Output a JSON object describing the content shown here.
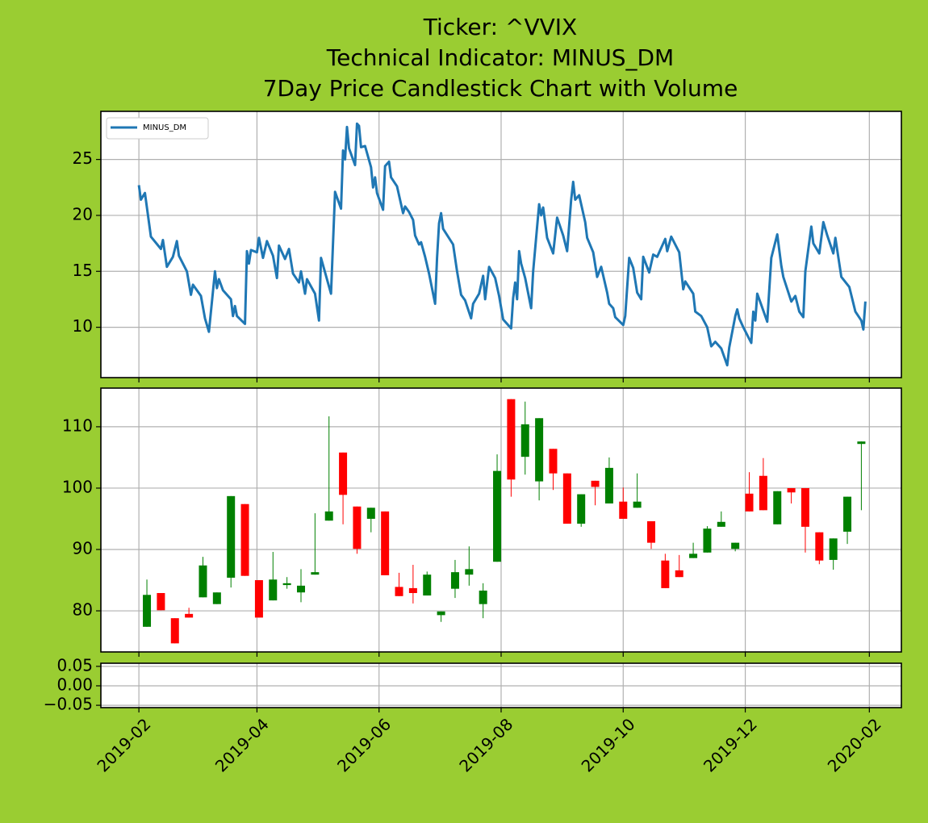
{
  "title": [
    "Ticker: ^VVIX",
    "Technical Indicator: MINUS_DM",
    "7Day Price Candlestick Chart with Volume"
  ],
  "xlim": [
    "2019-01-13",
    "2020-02-17"
  ],
  "xticks": [
    {
      "value": "2019-02-01",
      "label": "2019-02"
    },
    {
      "value": "2019-04-01",
      "label": "2019-04"
    },
    {
      "value": "2019-06-01",
      "label": "2019-06"
    },
    {
      "value": "2019-08-01",
      "label": "2019-08"
    },
    {
      "value": "2019-10-01",
      "label": "2019-10"
    },
    {
      "value": "2019-12-01",
      "label": "2019-12"
    },
    {
      "value": "2020-02-01",
      "label": "2020-02"
    }
  ],
  "chart_data": [
    {
      "type": "line",
      "legend": "upper left",
      "grid": true,
      "ylim": [
        5.5,
        29.3
      ],
      "yticks": [
        10,
        15,
        20,
        25
      ],
      "series": [
        {
          "name": "MINUS_DM",
          "color": "#1f77b4",
          "x": [
            "2019-02-01",
            "2019-02-02",
            "2019-02-04",
            "2019-02-07",
            "2019-02-12",
            "2019-02-13",
            "2019-02-15",
            "2019-02-18",
            "2019-02-20",
            "2019-02-21",
            "2019-02-25",
            "2019-02-27",
            "2019-02-28",
            "2019-03-04",
            "2019-03-06",
            "2019-03-08",
            "2019-03-11",
            "2019-03-12",
            "2019-03-13",
            "2019-03-15",
            "2019-03-19",
            "2019-03-20",
            "2019-03-21",
            "2019-03-22",
            "2019-03-26",
            "2019-03-27",
            "2019-03-28",
            "2019-03-29",
            "2019-04-01",
            "2019-04-02",
            "2019-04-04",
            "2019-04-06",
            "2019-04-09",
            "2019-04-11",
            "2019-04-12",
            "2019-04-15",
            "2019-04-17",
            "2019-04-19",
            "2019-04-22",
            "2019-04-23",
            "2019-04-25",
            "2019-04-26",
            "2019-04-30",
            "2019-05-02",
            "2019-05-03",
            "2019-05-08",
            "2019-05-10",
            "2019-05-13",
            "2019-05-14",
            "2019-05-15",
            "2019-05-16",
            "2019-05-17",
            "2019-05-20",
            "2019-05-21",
            "2019-05-22",
            "2019-05-23",
            "2019-05-25",
            "2019-05-28",
            "2019-05-29",
            "2019-05-30",
            "2019-05-31",
            "2019-06-03",
            "2019-06-04",
            "2019-06-06",
            "2019-06-07",
            "2019-06-10",
            "2019-06-13",
            "2019-06-14",
            "2019-06-16",
            "2019-06-18",
            "2019-06-19",
            "2019-06-21",
            "2019-06-22",
            "2019-06-24",
            "2019-06-26",
            "2019-06-29",
            "2019-06-30",
            "2019-07-01",
            "2019-07-02",
            "2019-07-03",
            "2019-07-08",
            "2019-07-10",
            "2019-07-12",
            "2019-07-14",
            "2019-07-17",
            "2019-07-18",
            "2019-07-21",
            "2019-07-23",
            "2019-07-24",
            "2019-07-26",
            "2019-07-29",
            "2019-07-31",
            "2019-08-02",
            "2019-08-06",
            "2019-08-07",
            "2019-08-08",
            "2019-08-09",
            "2019-08-10",
            "2019-08-11",
            "2019-08-13",
            "2019-08-16",
            "2019-08-17",
            "2019-08-20",
            "2019-08-21",
            "2019-08-22",
            "2019-08-24",
            "2019-08-27",
            "2019-08-29",
            "2019-09-01",
            "2019-09-03",
            "2019-09-05",
            "2019-09-06",
            "2019-09-07",
            "2019-09-09",
            "2019-09-12",
            "2019-09-13",
            "2019-09-16",
            "2019-09-18",
            "2019-09-20",
            "2019-09-23",
            "2019-09-24",
            "2019-09-26",
            "2019-09-27",
            "2019-10-01",
            "2019-10-02",
            "2019-10-04",
            "2019-10-06",
            "2019-10-08",
            "2019-10-10",
            "2019-10-11",
            "2019-10-14",
            "2019-10-16",
            "2019-10-18",
            "2019-10-22",
            "2019-10-23",
            "2019-10-25",
            "2019-10-29",
            "2019-10-31",
            "2019-11-01",
            "2019-11-05",
            "2019-11-06",
            "2019-11-09",
            "2019-11-12",
            "2019-11-14",
            "2019-11-16",
            "2019-11-19",
            "2019-11-22",
            "2019-11-23",
            "2019-11-26",
            "2019-11-27",
            "2019-11-28",
            "2019-11-30",
            "2019-12-04",
            "2019-12-05",
            "2019-12-06",
            "2019-12-07",
            "2019-12-09",
            "2019-12-12",
            "2019-12-14",
            "2019-12-17",
            "2019-12-19",
            "2019-12-20",
            "2019-12-24",
            "2019-12-26",
            "2019-12-28",
            "2019-12-30",
            "2019-12-31",
            "2020-01-03",
            "2020-01-04",
            "2020-01-07",
            "2020-01-09",
            "2020-01-11",
            "2020-01-14",
            "2020-01-15",
            "2020-01-18",
            "2020-01-22",
            "2020-01-25",
            "2020-01-28",
            "2020-01-29",
            "2020-01-30"
          ],
          "values": [
            22.7,
            21.4,
            22.0,
            18.1,
            17.0,
            17.8,
            15.4,
            16.3,
            17.7,
            16.4,
            15.0,
            12.9,
            13.8,
            12.8,
            10.8,
            9.6,
            15.0,
            13.5,
            14.3,
            13.3,
            12.5,
            11.0,
            11.9,
            11.0,
            10.3,
            16.8,
            15.7,
            16.9,
            16.7,
            18.0,
            16.2,
            17.7,
            16.4,
            14.4,
            17.3,
            16.1,
            17.0,
            14.8,
            14.0,
            15.0,
            13.0,
            14.3,
            13.0,
            10.6,
            16.2,
            13.0,
            22.1,
            20.6,
            25.8,
            25.0,
            27.9,
            26.0,
            24.5,
            28.2,
            28.0,
            26.1,
            26.2,
            24.3,
            22.5,
            23.4,
            22.0,
            20.5,
            24.4,
            24.8,
            23.4,
            22.6,
            20.2,
            20.8,
            20.3,
            19.6,
            18.2,
            17.4,
            17.6,
            16.3,
            14.8,
            12.1,
            16.2,
            19.3,
            20.2,
            18.8,
            17.4,
            15.0,
            12.9,
            12.4,
            10.8,
            12.1,
            13.0,
            14.6,
            12.5,
            15.4,
            14.4,
            12.8,
            10.7,
            9.9,
            12.6,
            14.0,
            12.5,
            16.8,
            15.7,
            14.4,
            11.7,
            15.0,
            21.0,
            20.0,
            20.7,
            18.0,
            16.6,
            19.8,
            18.2,
            16.8,
            21.4,
            23.0,
            21.4,
            21.8,
            19.4,
            18.0,
            16.7,
            14.5,
            15.4,
            13.1,
            12.1,
            11.7,
            10.9,
            10.2,
            11.0,
            16.2,
            15.3,
            13.1,
            12.5,
            16.3,
            14.9,
            16.5,
            16.3,
            17.9,
            16.8,
            18.1,
            16.7,
            13.4,
            14.1,
            13.0,
            11.4,
            11.0,
            10.0,
            8.3,
            8.7,
            8.1,
            6.6,
            8.2,
            11.0,
            11.6,
            10.8,
            10.0,
            8.6,
            11.4,
            10.6,
            13.0,
            12.0,
            10.5,
            16.2,
            18.3,
            15.5,
            14.5,
            12.3,
            12.8,
            11.4,
            10.9,
            15.0,
            19.0,
            17.5,
            16.6,
            19.4,
            18.2,
            16.6,
            18.0,
            14.5,
            13.6,
            11.4,
            10.6,
            9.8,
            12.3
          ]
        }
      ]
    },
    {
      "type": "candlestick",
      "grid": true,
      "ylim": [
        73.3,
        116.3
      ],
      "yticks": [
        80,
        90,
        100,
        110
      ],
      "up_color": "green",
      "down_color": "red",
      "x": [
        "2019-02-05",
        "2019-02-12",
        "2019-02-19",
        "2019-02-26",
        "2019-03-05",
        "2019-03-12",
        "2019-03-19",
        "2019-03-26",
        "2019-04-02",
        "2019-04-09",
        "2019-04-16",
        "2019-04-23",
        "2019-04-30",
        "2019-05-07",
        "2019-05-14",
        "2019-05-21",
        "2019-05-28",
        "2019-06-04",
        "2019-06-11",
        "2019-06-18",
        "2019-06-25",
        "2019-07-02",
        "2019-07-09",
        "2019-07-16",
        "2019-07-23",
        "2019-07-30",
        "2019-08-06",
        "2019-08-13",
        "2019-08-20",
        "2019-08-27",
        "2019-09-03",
        "2019-09-10",
        "2019-09-17",
        "2019-09-24",
        "2019-10-01",
        "2019-10-08",
        "2019-10-15",
        "2019-10-22",
        "2019-10-29",
        "2019-11-05",
        "2019-11-12",
        "2019-11-19",
        "2019-11-26",
        "2019-12-03",
        "2019-12-10",
        "2019-12-17",
        "2019-12-24",
        "2019-12-31",
        "2020-01-07",
        "2020-01-14",
        "2020-01-21",
        "2020-01-28"
      ],
      "open": [
        77.4,
        82.9,
        78.8,
        79.5,
        82.2,
        81.1,
        85.4,
        97.4,
        85.0,
        81.7,
        84.2,
        83.0,
        85.9,
        94.7,
        105.8,
        97.0,
        95.0,
        96.2,
        83.9,
        83.7,
        82.5,
        79.3,
        83.6,
        85.9,
        81.1,
        88.0,
        114.5,
        105.1,
        101.1,
        106.4,
        102.4,
        94.2,
        101.2,
        97.5,
        97.8,
        96.8,
        94.6,
        88.2,
        86.6,
        88.6,
        89.5,
        93.7,
        90.1,
        99.1,
        102.0,
        94.1,
        100.0,
        100.0,
        92.8,
        88.3,
        92.9,
        107.2
      ],
      "high": [
        85.1,
        82.9,
        78.8,
        80.5,
        88.8,
        83.0,
        98.7,
        97.4,
        85.0,
        89.6,
        85.5,
        86.8,
        95.9,
        111.7,
        105.8,
        97.0,
        96.8,
        96.2,
        86.2,
        87.5,
        86.4,
        79.9,
        88.3,
        90.5,
        84.5,
        105.5,
        114.5,
        114.1,
        111.4,
        106.4,
        102.4,
        99.0,
        101.2,
        105.0,
        100.1,
        102.4,
        94.6,
        89.3,
        89.1,
        91.1,
        93.8,
        96.2,
        91.1,
        102.6,
        104.9,
        99.5,
        100.0,
        100.0,
        92.8,
        91.8,
        98.6,
        107.6
      ],
      "low": [
        77.4,
        80.1,
        74.7,
        78.9,
        82.2,
        81.1,
        83.8,
        85.7,
        78.9,
        81.7,
        83.6,
        81.4,
        85.9,
        94.7,
        94.1,
        89.3,
        92.8,
        85.8,
        82.4,
        81.2,
        82.5,
        78.2,
        82.1,
        84.1,
        78.8,
        88.0,
        98.6,
        102.2,
        98.0,
        99.7,
        94.2,
        93.7,
        97.2,
        97.5,
        95.0,
        96.8,
        90.1,
        83.7,
        85.5,
        88.6,
        89.5,
        93.7,
        89.7,
        96.2,
        96.4,
        94.1,
        97.5,
        89.5,
        87.6,
        86.7,
        90.9,
        96.4
      ],
      "close": [
        82.6,
        80.1,
        74.7,
        78.9,
        87.4,
        83.0,
        98.7,
        85.7,
        78.9,
        85.1,
        84.5,
        84.1,
        86.3,
        96.2,
        98.9,
        90.1,
        96.8,
        85.8,
        82.4,
        82.9,
        85.9,
        79.9,
        86.3,
        86.8,
        83.3,
        102.8,
        101.4,
        110.4,
        111.4,
        102.4,
        94.2,
        99.0,
        100.2,
        103.3,
        95.0,
        97.8,
        91.1,
        83.7,
        85.5,
        89.3,
        93.4,
        94.5,
        91.1,
        96.2,
        96.4,
        99.5,
        99.3,
        93.7,
        88.2,
        91.8,
        98.6,
        107.6
      ]
    },
    {
      "type": "bar",
      "grid": true,
      "ylim": [
        -0.056,
        0.058
      ],
      "yticks": [
        {
          "value": 0.05,
          "label": "0.05"
        },
        {
          "value": 0,
          "label": "0.00"
        },
        {
          "value": -0.05,
          "label": "−0.05"
        }
      ]
    }
  ]
}
